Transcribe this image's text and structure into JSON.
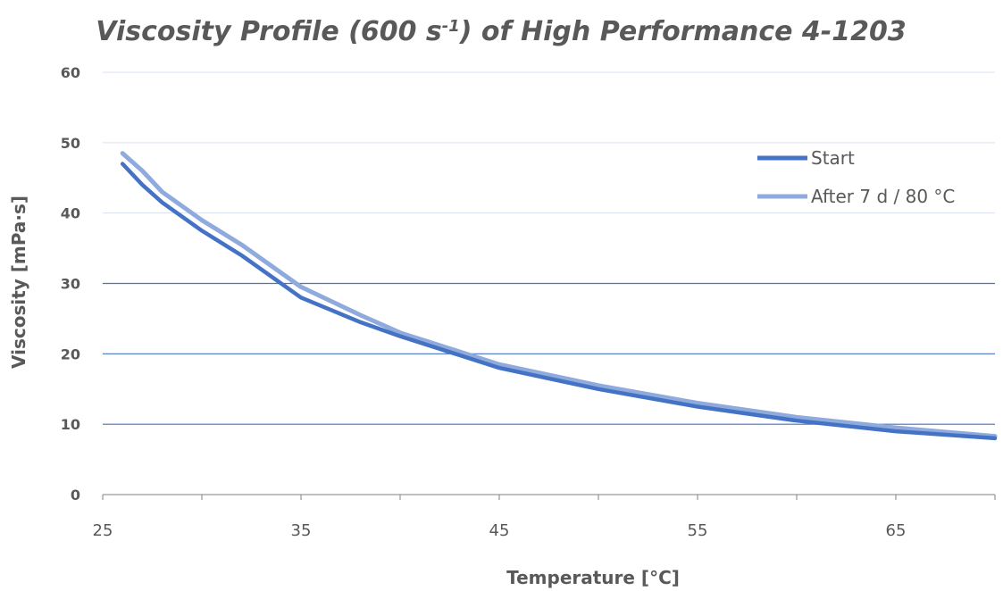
{
  "chart_data": {
    "type": "line",
    "title_main": "Viscosity Profile (600 s",
    "title_sup": "-1",
    "title_end": ") of High Performance 4-1203",
    "xlabel": "Temperature [°C]",
    "ylabel": "Viscosity [mPa·s]",
    "xlim": [
      25,
      70
    ],
    "ylim": [
      0,
      60
    ],
    "x_ticks": [
      25,
      35,
      45,
      55,
      65
    ],
    "y_ticks": [
      0,
      10,
      20,
      30,
      40,
      50,
      60
    ],
    "grid": true,
    "legend_position": "top-right",
    "series": [
      {
        "name": "Start",
        "color": "#4472C4",
        "x": [
          26,
          27,
          28,
          30,
          32,
          35,
          38,
          40,
          45,
          50,
          55,
          60,
          65,
          70
        ],
        "y": [
          47,
          44,
          41.5,
          37.5,
          34,
          28,
          24.5,
          22.5,
          18,
          15,
          12.5,
          10.5,
          9,
          8
        ]
      },
      {
        "name": "After 7 d / 80 °C",
        "color": "#8FAADC",
        "x": [
          26,
          27,
          28,
          30,
          32,
          35,
          38,
          40,
          45,
          50,
          55,
          60,
          65,
          70
        ],
        "y": [
          48.5,
          46,
          43,
          39,
          35.5,
          29.5,
          25.5,
          23,
          18.5,
          15.5,
          13,
          11,
          9.5,
          8.3
        ]
      }
    ]
  }
}
